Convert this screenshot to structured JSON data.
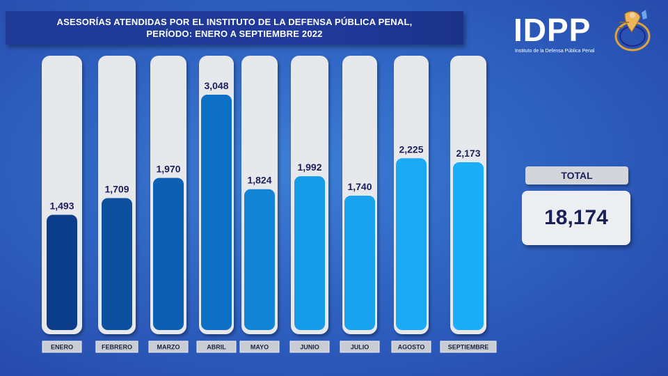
{
  "title": {
    "line1": "ASESORÍAS ATENDIDAS POR EL INSTITUTO DE LA DEFENSA PÚBLICA PENAL,",
    "line2": "PERÍODO:  ENERO A SEPTIEMBRE 2022"
  },
  "logo": {
    "text": "IDPP",
    "subtitle": "Instituto de la Defensa Pública Penal"
  },
  "total": {
    "label": "TOTAL",
    "value": "18,174"
  },
  "colors": {
    "background": "#2f63c2",
    "track": "#e6e8ec",
    "bar_dark": "#0d3f8f",
    "bar_light": "#19a9f5",
    "label_text": "#1b1f5a"
  },
  "chart_data": {
    "type": "bar",
    "title": "ASESORÍAS ATENDIDAS POR EL INSTITUTO DE LA DEFENSA PÚBLICA PENAL, PERÍODO:  ENERO A SEPTIEMBRE 2022",
    "categories": [
      "ENERO",
      "FEBRERO",
      "MARZO",
      "ABRIL",
      "MAYO",
      "JUNIO",
      "JULIO",
      "AGOSTO",
      "SEPTIEMBRE"
    ],
    "values": [
      1493,
      1709,
      1970,
      3048,
      1824,
      1992,
      1740,
      2225,
      2173
    ],
    "value_labels": [
      "1,493",
      "1,709",
      "1,970",
      "3,048",
      "1,824",
      "1,992",
      "1,740",
      "2,225",
      "2,173"
    ],
    "bar_colors": [
      "#0b3d8c",
      "#0c4f9f",
      "#0c5fb2",
      "#0e6fc6",
      "#1184d6",
      "#159be8",
      "#17a3ee",
      "#19a9f5",
      "#1aadf8"
    ],
    "xlabel": "",
    "ylabel": "",
    "grid": false,
    "legend": "none"
  }
}
